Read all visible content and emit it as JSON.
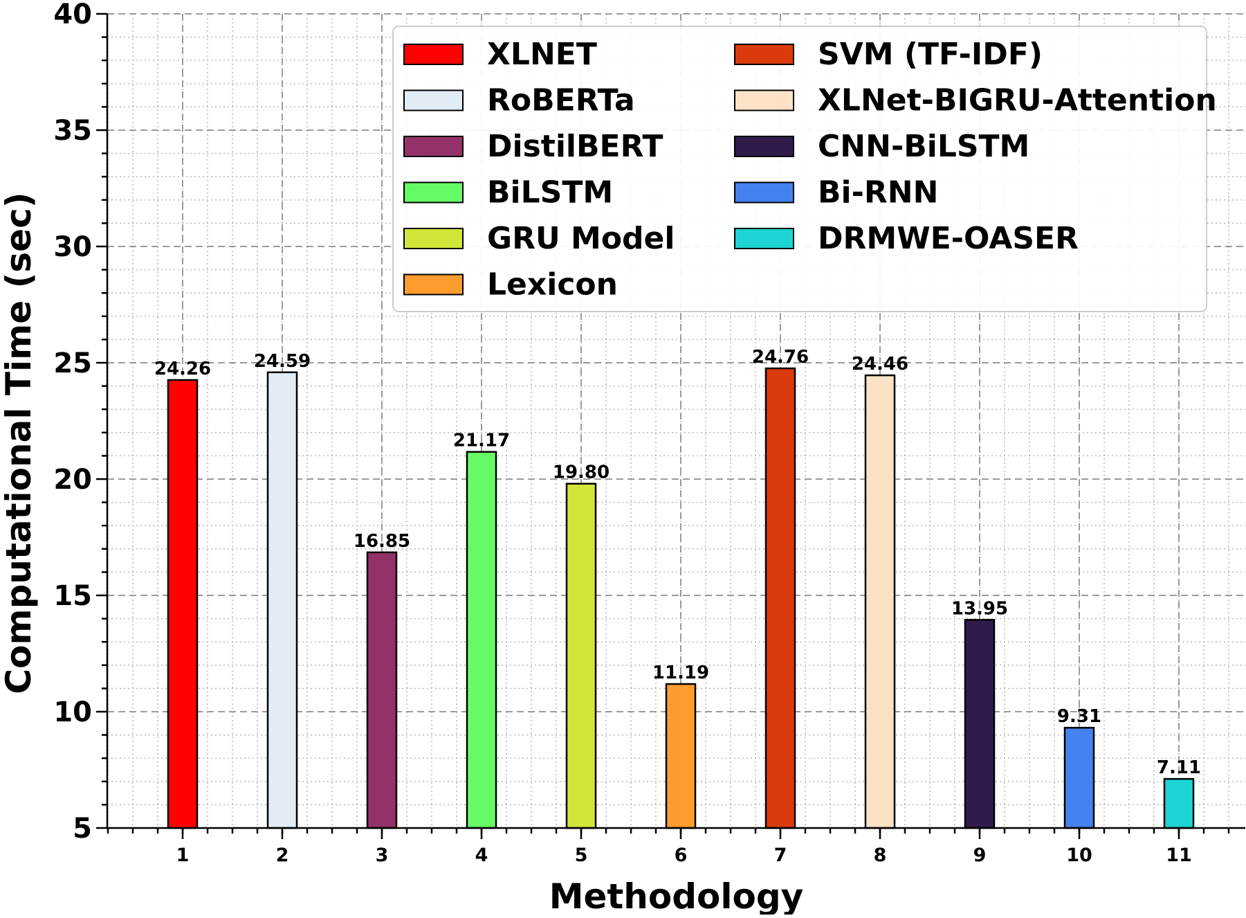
{
  "chart_data": {
    "type": "bar",
    "title": "",
    "xlabel": "Methodology",
    "ylabel": "Computational Time (sec)",
    "ylim": [
      5,
      40
    ],
    "yticks": [
      5,
      10,
      15,
      20,
      25,
      30,
      35,
      40
    ],
    "grid": true,
    "legend_position": "top-right",
    "legend_columns": 2,
    "categories": [
      "1",
      "2",
      "3",
      "4",
      "5",
      "6",
      "7",
      "8",
      "9",
      "10",
      "11"
    ],
    "values": [
      24.26,
      24.59,
      16.85,
      21.17,
      19.8,
      11.19,
      24.76,
      24.46,
      13.95,
      9.31,
      7.11
    ],
    "value_labels": [
      "24.26",
      "24.59",
      "16.85",
      "21.17",
      "19.80",
      "11.19",
      "24.76",
      "24.46",
      "13.95",
      "9.31",
      "7.11"
    ],
    "series_names": [
      "XLNET",
      "RoBERTa",
      "DistilBERT",
      "BiLSTM",
      "GRU Model",
      "Lexicon",
      "SVM (TF-IDF)",
      "XLNet-BIGRU-Attention",
      "CNN-BiLSTM",
      "Bi-RNN",
      "DRMWE-OASER"
    ],
    "colors": [
      "#ff0000",
      "#e2ecf5",
      "#943168",
      "#66fb66",
      "#d2e63a",
      "#ff9c2e",
      "#da3a0c",
      "#fde2c6",
      "#301b4b",
      "#4482f1",
      "#1ed3d3"
    ]
  }
}
